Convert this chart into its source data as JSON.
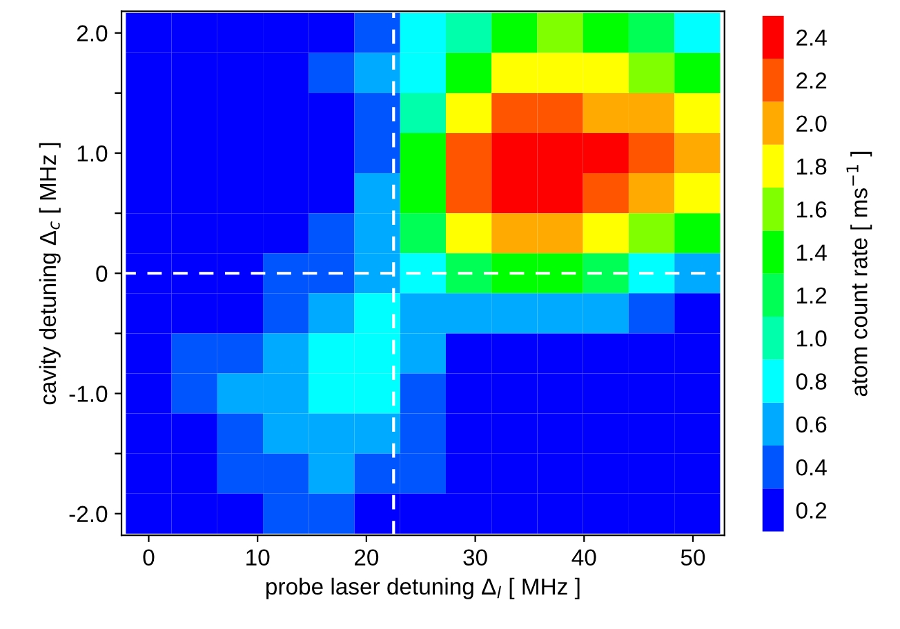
{
  "chart_data": {
    "type": "heatmap",
    "xlabel": "probe laser detuning Δ$_{l}$ [ MHz ]",
    "ylabel": "cavity detuning Δ$_{c}$ [ MHz ]",
    "clabel": "atom count rate [ ms$^{−1}$ ]",
    "x": [
      0,
      4.2,
      8.4,
      12.6,
      16.8,
      21,
      25.2,
      29.4,
      33.6,
      37.8,
      42,
      46.2,
      50.4
    ],
    "y": [
      2.0,
      1.667,
      1.333,
      1.0,
      0.667,
      0.333,
      0,
      -0.333,
      -0.667,
      -1.0,
      -1.333,
      -1.667,
      -2.0
    ],
    "cells": [
      [
        0.2,
        0.2,
        0.2,
        0.2,
        0.2,
        0.4,
        0.8,
        1.0,
        1.4,
        1.6,
        1.4,
        1.2,
        0.8
      ],
      [
        0.2,
        0.2,
        0.2,
        0.2,
        0.4,
        0.6,
        0.8,
        1.4,
        1.8,
        1.8,
        1.8,
        1.6,
        1.4
      ],
      [
        0.2,
        0.2,
        0.2,
        0.2,
        0.2,
        0.4,
        1.0,
        1.8,
        2.2,
        2.2,
        2.0,
        2.0,
        1.8
      ],
      [
        0.2,
        0.2,
        0.2,
        0.2,
        0.2,
        0.4,
        1.4,
        2.2,
        2.4,
        2.4,
        2.4,
        2.2,
        2.0
      ],
      [
        0.2,
        0.2,
        0.2,
        0.2,
        0.2,
        0.6,
        1.4,
        2.2,
        2.4,
        2.4,
        2.2,
        2.0,
        1.8
      ],
      [
        0.2,
        0.2,
        0.2,
        0.2,
        0.4,
        0.6,
        1.2,
        1.8,
        2.0,
        2.0,
        1.8,
        1.6,
        1.4
      ],
      [
        0.2,
        0.2,
        0.2,
        0.4,
        0.4,
        0.6,
        0.8,
        1.2,
        1.4,
        1.4,
        1.2,
        0.8,
        0.6
      ],
      [
        0.2,
        0.2,
        0.2,
        0.4,
        0.6,
        0.8,
        0.6,
        0.6,
        0.6,
        0.6,
        0.6,
        0.4,
        0.2
      ],
      [
        0.2,
        0.4,
        0.4,
        0.6,
        0.8,
        0.8,
        0.6,
        0.2,
        0.2,
        0.2,
        0.2,
        0.2,
        0.2
      ],
      [
        0.2,
        0.4,
        0.6,
        0.6,
        0.8,
        0.8,
        0.4,
        0.2,
        0.2,
        0.2,
        0.2,
        0.2,
        0.2
      ],
      [
        0.2,
        0.2,
        0.4,
        0.6,
        0.6,
        0.6,
        0.4,
        0.2,
        0.2,
        0.2,
        0.2,
        0.2,
        0.2
      ],
      [
        0.2,
        0.2,
        0.4,
        0.4,
        0.6,
        0.4,
        0.4,
        0.2,
        0.2,
        0.2,
        0.2,
        0.2,
        0.2
      ],
      [
        0.2,
        0.2,
        0.2,
        0.4,
        0.4,
        0.2,
        0.2,
        0.2,
        0.2,
        0.2,
        0.2,
        0.2,
        0.2
      ]
    ],
    "colors": [
      "#0000ff",
      "#0055ff",
      "#00aaff",
      "#00ffff",
      "#00ffaa",
      "#00ff55",
      "#00ff00",
      "#80ff00",
      "#ffff00",
      "#ffaa00",
      "#ff5500",
      "#ff0000"
    ],
    "clim": [
      0.1,
      2.5
    ],
    "cticks": [
      {
        "value": 0.2,
        "label": "0.2"
      },
      {
        "value": 0.4,
        "label": "0.4"
      },
      {
        "value": 0.6,
        "label": "0.6"
      },
      {
        "value": 0.8,
        "label": "0.8"
      },
      {
        "value": 1.0,
        "label": "1.0"
      },
      {
        "value": 1.2,
        "label": "1.2"
      },
      {
        "value": 1.4,
        "label": "1.4"
      },
      {
        "value": 1.6,
        "label": "1.6"
      },
      {
        "value": 1.8,
        "label": "1.8"
      },
      {
        "value": 2.0,
        "label": "2.0"
      },
      {
        "value": 2.2,
        "label": "2.2"
      },
      {
        "value": 2.4,
        "label": "2.4"
      }
    ],
    "xlim": [
      -2.5,
      52.9
    ],
    "ylim": [
      -2.18,
      2.18
    ],
    "xticks": [
      0,
      10,
      20,
      30,
      40,
      50
    ],
    "yticks": [
      {
        "value": -2.0,
        "label": "-2.0"
      },
      {
        "value": -1.5,
        "label": null
      },
      {
        "value": -1.0,
        "label": "-1.0"
      },
      {
        "value": -0.5,
        "label": null
      },
      {
        "value": 0,
        "label": "0"
      },
      {
        "value": 0.5,
        "label": null
      },
      {
        "value": 1.0,
        "label": "1.0"
      },
      {
        "value": 1.5,
        "label": null
      },
      {
        "value": 2.0,
        "label": "2.0"
      }
    ],
    "ref_lines": [
      {
        "axis": "x",
        "value": 22.5,
        "color": "#ffffff",
        "line_style": "dashed"
      },
      {
        "axis": "y",
        "value": 0,
        "color": "#ffffff",
        "line_style": "dashed"
      }
    ],
    "grid": false
  }
}
